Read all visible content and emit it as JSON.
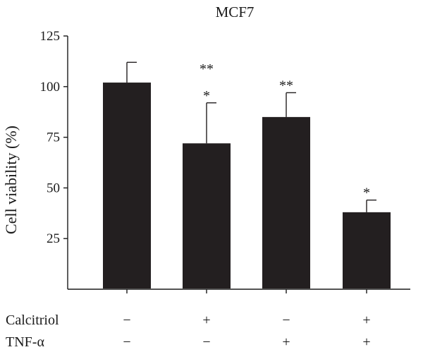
{
  "chart_data": {
    "type": "bar",
    "title": "MCF7",
    "ylabel": "Cell viability (%)",
    "xlabel": "",
    "ylim": [
      0,
      125
    ],
    "yticks": [
      25,
      50,
      75,
      100,
      125
    ],
    "grid": false,
    "legend": "none",
    "bar_color": "#231f20",
    "categories": [
      "1",
      "2",
      "3",
      "4"
    ],
    "values": [
      102,
      72,
      85,
      38
    ],
    "error_upper": [
      112,
      92,
      97,
      44
    ],
    "significance": [
      [],
      [
        "**",
        "*"
      ],
      [
        "**"
      ],
      [
        "*"
      ]
    ],
    "treatment_rows": [
      {
        "label": "Calcitriol",
        "symbols": [
          "−",
          "+",
          "−",
          "+"
        ]
      },
      {
        "label": "TNF-α",
        "symbols": [
          "−",
          "−",
          "+",
          "+"
        ]
      }
    ]
  }
}
